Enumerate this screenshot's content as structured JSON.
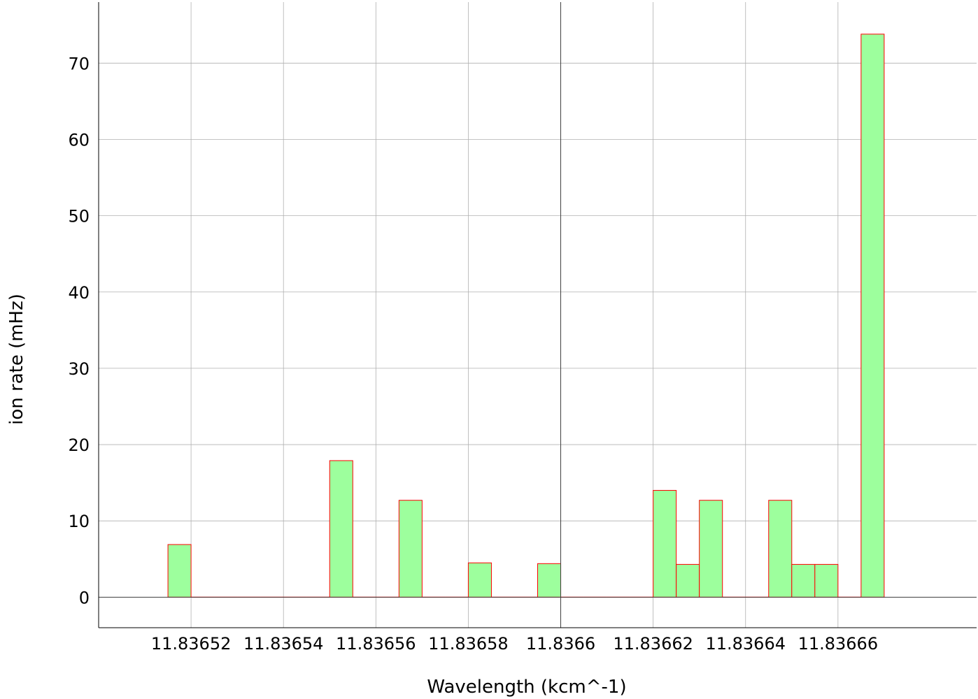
{
  "chart_data": {
    "type": "bar",
    "subtype": "histogram",
    "xlabel": "Wavelength (kcm^-1)",
    "ylabel": "ion rate (mHz)",
    "xlim": [
      11.8365,
      11.83669
    ],
    "ylim": [
      -4,
      78
    ],
    "bin_width": 5e-06,
    "x_ticks": [
      {
        "value": 11.83652,
        "label": "11.83652"
      },
      {
        "value": 11.83654,
        "label": "11.83654"
      },
      {
        "value": 11.83656,
        "label": "11.83656"
      },
      {
        "value": 11.83658,
        "label": "11.83658"
      },
      {
        "value": 11.8366,
        "label": "11.8366"
      },
      {
        "value": 11.83662,
        "label": "11.83662"
      },
      {
        "value": 11.83664,
        "label": "11.83664"
      },
      {
        "value": 11.83666,
        "label": "11.83666"
      }
    ],
    "y_ticks": [
      {
        "value": 0,
        "label": "0"
      },
      {
        "value": 10,
        "label": "10"
      },
      {
        "value": 20,
        "label": "20"
      },
      {
        "value": 30,
        "label": "30"
      },
      {
        "value": 40,
        "label": "40"
      },
      {
        "value": 50,
        "label": "50"
      },
      {
        "value": 60,
        "label": "60"
      },
      {
        "value": 70,
        "label": "70"
      }
    ],
    "bins": [
      {
        "start": 11.836515,
        "value": 6.9
      },
      {
        "start": 11.83652,
        "value": 0
      },
      {
        "start": 11.836525,
        "value": 0
      },
      {
        "start": 11.83653,
        "value": 0
      },
      {
        "start": 11.836535,
        "value": 0
      },
      {
        "start": 11.83654,
        "value": 0
      },
      {
        "start": 11.836545,
        "value": 0
      },
      {
        "start": 11.83655,
        "value": 17.9
      },
      {
        "start": 11.836555,
        "value": 0
      },
      {
        "start": 11.83656,
        "value": 0
      },
      {
        "start": 11.836565,
        "value": 12.7
      },
      {
        "start": 11.83657,
        "value": 0
      },
      {
        "start": 11.836575,
        "value": 0
      },
      {
        "start": 11.83658,
        "value": 4.5
      },
      {
        "start": 11.836585,
        "value": 0
      },
      {
        "start": 11.83659,
        "value": 0
      },
      {
        "start": 11.836595,
        "value": 4.4
      },
      {
        "start": 11.8366,
        "value": 0
      },
      {
        "start": 11.836605,
        "value": 0
      },
      {
        "start": 11.83661,
        "value": 0
      },
      {
        "start": 11.836615,
        "value": 0
      },
      {
        "start": 11.83662,
        "value": 14.0
      },
      {
        "start": 11.836625,
        "value": 4.3
      },
      {
        "start": 11.83663,
        "value": 12.7
      },
      {
        "start": 11.836635,
        "value": 0
      },
      {
        "start": 11.83664,
        "value": 0
      },
      {
        "start": 11.836645,
        "value": 12.7
      },
      {
        "start": 11.83665,
        "value": 4.3
      },
      {
        "start": 11.836655,
        "value": 4.3
      },
      {
        "start": 11.83666,
        "value": 0
      },
      {
        "start": 11.836665,
        "value": 73.8
      }
    ],
    "bar_fill": "#9dff9d",
    "bar_stroke": "#ff0000",
    "grid": true,
    "grid_color": "#b0b0b0",
    "zero_lines": true
  }
}
